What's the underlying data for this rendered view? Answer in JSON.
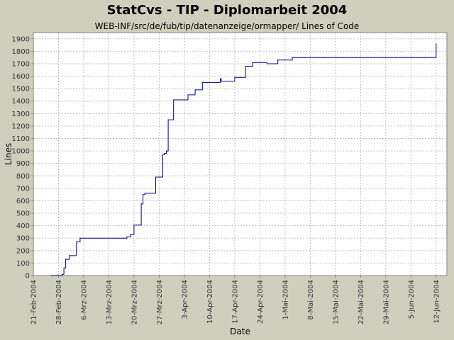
{
  "chart_data": {
    "type": "line",
    "title": "StatCvs - TIP - Diplomarbeit 2004",
    "subtitle": "WEB-INF/src/de/fub/tip/datenanzeige/ormapper/ Lines of Code",
    "xlabel": "Date",
    "ylabel": "Lines",
    "xlim": [
      "2004-02-21",
      "2004-06-15"
    ],
    "ylim": [
      0,
      1950
    ],
    "y_ticks": [
      0,
      100,
      200,
      300,
      400,
      500,
      600,
      700,
      800,
      900,
      1000,
      1100,
      1200,
      1300,
      1400,
      1500,
      1600,
      1700,
      1800,
      1900
    ],
    "x_ticks": [
      {
        "date": "2004-02-21",
        "label": "21-Feb-2004"
      },
      {
        "date": "2004-02-28",
        "label": "28-Feb-2004"
      },
      {
        "date": "2004-03-06",
        "label": "6-Mrz-2004"
      },
      {
        "date": "2004-03-13",
        "label": "13-Mrz-2004"
      },
      {
        "date": "2004-03-20",
        "label": "20-Mrz-2004"
      },
      {
        "date": "2004-03-27",
        "label": "27-Mrz-2004"
      },
      {
        "date": "2004-04-03",
        "label": "3-Apr-2004"
      },
      {
        "date": "2004-04-10",
        "label": "10-Apr-2004"
      },
      {
        "date": "2004-04-17",
        "label": "17-Apr-2004"
      },
      {
        "date": "2004-04-24",
        "label": "24-Apr-2004"
      },
      {
        "date": "2004-05-01",
        "label": "1-Mai-2004"
      },
      {
        "date": "2004-05-08",
        "label": "8-Mai-2004"
      },
      {
        "date": "2004-05-15",
        "label": "15-Mai-2004"
      },
      {
        "date": "2004-05-22",
        "label": "22-Mai-2004"
      },
      {
        "date": "2004-05-29",
        "label": "29-Mai-2004"
      },
      {
        "date": "2004-06-05",
        "label": "5-Jun-2004"
      },
      {
        "date": "2004-06-12",
        "label": "12-Jun-2004"
      }
    ],
    "grid": true,
    "line_color": "#00008b",
    "series": [
      {
        "step": true,
        "points": [
          {
            "x": "2004-02-26",
            "y": 0
          },
          {
            "x": "2004-02-29",
            "y": 10
          },
          {
            "x": "2004-02-29 12:00",
            "y": 60
          },
          {
            "x": "2004-03-01",
            "y": 130
          },
          {
            "x": "2004-03-02",
            "y": 160
          },
          {
            "x": "2004-03-04",
            "y": 270
          },
          {
            "x": "2004-03-05",
            "y": 300
          },
          {
            "x": "2004-03-18",
            "y": 310
          },
          {
            "x": "2004-03-19",
            "y": 330
          },
          {
            "x": "2004-03-20",
            "y": 405
          },
          {
            "x": "2004-03-22",
            "y": 575
          },
          {
            "x": "2004-03-22 12:00",
            "y": 650
          },
          {
            "x": "2004-03-23",
            "y": 660
          },
          {
            "x": "2004-03-26",
            "y": 790
          },
          {
            "x": "2004-03-28",
            "y": 970
          },
          {
            "x": "2004-03-28 12:00",
            "y": 980
          },
          {
            "x": "2004-03-29",
            "y": 1000
          },
          {
            "x": "2004-03-29 12:00",
            "y": 1250
          },
          {
            "x": "2004-03-31",
            "y": 1410
          },
          {
            "x": "2004-04-04",
            "y": 1450
          },
          {
            "x": "2004-04-06",
            "y": 1490
          },
          {
            "x": "2004-04-08",
            "y": 1550
          },
          {
            "x": "2004-04-13",
            "y": 1580
          },
          {
            "x": "2004-04-13 06:00",
            "y": 1560
          },
          {
            "x": "2004-04-17",
            "y": 1590
          },
          {
            "x": "2004-04-20",
            "y": 1680
          },
          {
            "x": "2004-04-22",
            "y": 1710
          },
          {
            "x": "2004-04-26",
            "y": 1700
          },
          {
            "x": "2004-04-29",
            "y": 1730
          },
          {
            "x": "2004-05-03",
            "y": 1750
          },
          {
            "x": "2004-06-12",
            "y": 1860
          }
        ]
      }
    ]
  }
}
